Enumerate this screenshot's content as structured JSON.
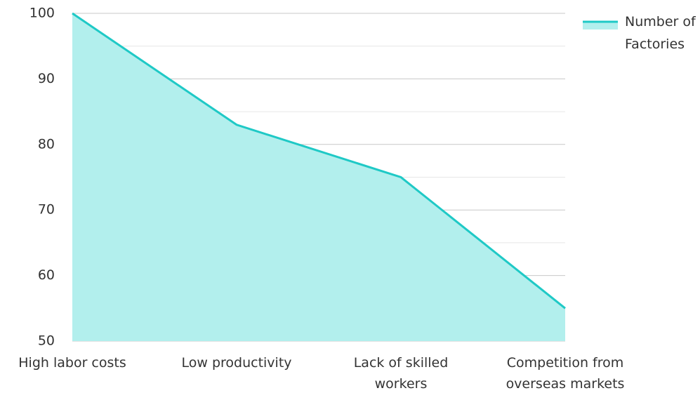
{
  "chart_data": {
    "type": "area",
    "categories": [
      "High labor costs",
      "Low productivity",
      "Lack of skilled workers",
      "Competition from overseas markets"
    ],
    "series": [
      {
        "name": "Number of Factories",
        "color": "#1fc9c6",
        "fill": "#b2efed",
        "values": [
          100,
          83,
          75,
          55
        ]
      }
    ],
    "ylim": [
      50,
      100
    ],
    "yticks": [
      50,
      60,
      70,
      80,
      90,
      100
    ],
    "grid": true,
    "legend": "right"
  }
}
